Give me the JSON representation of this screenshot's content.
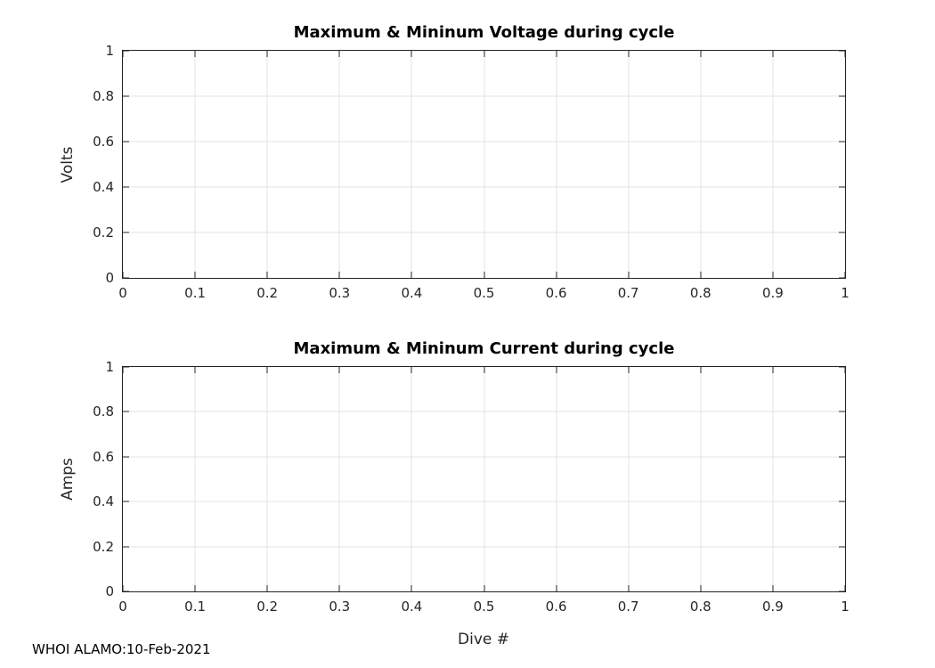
{
  "annotation": "WHOI ALAMO:10-Feb-2021",
  "chart_data": [
    {
      "type": "line",
      "title": "Maximum & Mininum Voltage during cycle",
      "xlabel": "",
      "ylabel": "Volts",
      "xlim": [
        0,
        1
      ],
      "ylim": [
        0,
        1
      ],
      "xtick_labels": [
        "0",
        "0.1",
        "0.2",
        "0.3",
        "0.4",
        "0.5",
        "0.6",
        "0.7",
        "0.8",
        "0.9",
        "1"
      ],
      "ytick_labels": [
        "0",
        "0.2",
        "0.4",
        "0.6",
        "0.8",
        "1"
      ],
      "grid": true,
      "legend": null,
      "series": []
    },
    {
      "type": "line",
      "title": "Maximum & Mininum Current during cycle",
      "xlabel": "Dive #",
      "ylabel": "Amps",
      "xlim": [
        0,
        1
      ],
      "ylim": [
        0,
        1
      ],
      "xtick_labels": [
        "0",
        "0.1",
        "0.2",
        "0.3",
        "0.4",
        "0.5",
        "0.6",
        "0.7",
        "0.8",
        "0.9",
        "1"
      ],
      "ytick_labels": [
        "0",
        "0.2",
        "0.4",
        "0.6",
        "0.8",
        "1"
      ],
      "grid": true,
      "legend": null,
      "series": []
    }
  ]
}
